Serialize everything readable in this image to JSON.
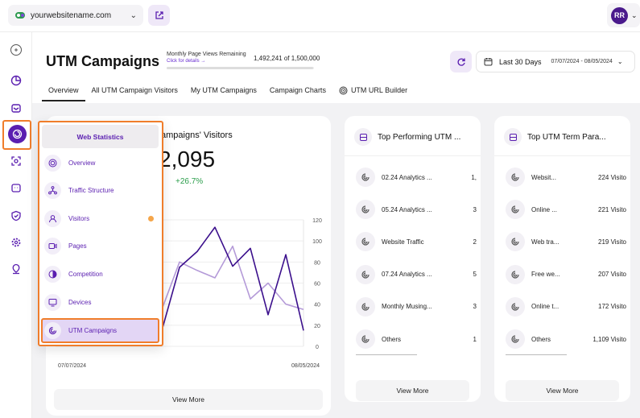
{
  "topbar": {
    "site": "yourwebsitename.com",
    "user_initials": "RR"
  },
  "header": {
    "title": "UTM Campaigns",
    "pageviews_label": "Monthly Page Views Remaining",
    "pageviews_link": "Click for details →",
    "pageviews_value": "1,492,241 of 1,500,000",
    "pageviews_fraction": 0.995,
    "date_range_label": "Last 30 Days",
    "date_range": "07/07/2024 - 08/05/2024"
  },
  "tabs": [
    {
      "label": "Overview"
    },
    {
      "label": "All UTM Campaign Visitors"
    },
    {
      "label": "My UTM Campaigns"
    },
    {
      "label": "Campaign Charts"
    },
    {
      "label": "UTM URL Builder"
    }
  ],
  "visitors_card": {
    "title": "ampaigns' Visitors",
    "value": "2,095",
    "trend": "+26.7%",
    "view_more": "View More"
  },
  "chart_data": {
    "type": "line",
    "x_start_label": "07/07/2024",
    "x_end_label": "08/05/2024",
    "yticks": [
      "120",
      "100",
      "80",
      "60",
      "40",
      "20",
      "0"
    ],
    "ylim": [
      0,
      120
    ],
    "x": [
      0,
      1,
      2,
      3,
      4,
      5,
      6,
      7,
      8,
      9,
      10,
      11,
      12,
      13,
      14
    ],
    "series": [
      {
        "values": [
          80,
          70,
          18,
          85,
          52,
          101,
          15,
          75,
          90,
          113,
          76,
          93,
          30,
          87,
          15
        ],
        "color": "#3b0f8c"
      },
      {
        "values": [
          45,
          55,
          60,
          85,
          55,
          65,
          35,
          80,
          72,
          65,
          95,
          45,
          60,
          40,
          35
        ],
        "color": "#b49ad8"
      }
    ]
  },
  "top_campaigns": {
    "title": "Top Performing UTM ...",
    "items": [
      {
        "label": "02.24 Analytics ...",
        "value": "1,"
      },
      {
        "label": "05.24 Analytics ...",
        "value": "3"
      },
      {
        "label": "Website Traffic",
        "value": "2"
      },
      {
        "label": "07.24 Analytics ...",
        "value": "5"
      },
      {
        "label": "Monthly Musing...",
        "value": "3"
      },
      {
        "label": "Others",
        "value": "1"
      }
    ],
    "view_more": "View More"
  },
  "top_terms": {
    "title": "Top UTM Term Para...",
    "items": [
      {
        "label": "Websit...",
        "value": "224 Visito"
      },
      {
        "label": "Online ...",
        "value": "221 Visito"
      },
      {
        "label": "Web tra...",
        "value": "219 Visito"
      },
      {
        "label": "Free we...",
        "value": "207 Visito"
      },
      {
        "label": "Online t...",
        "value": "172 Visito"
      },
      {
        "label": "Others",
        "value": "1,109 Visito"
      }
    ],
    "view_more": "View More"
  },
  "menu": {
    "header": "Web Statistics",
    "items": [
      {
        "label": "Overview",
        "icon": "target-icon"
      },
      {
        "label": "Traffic Structure",
        "icon": "network-icon"
      },
      {
        "label": "Visitors",
        "icon": "user-icon"
      },
      {
        "label": "Pages",
        "icon": "video-icon"
      },
      {
        "label": "Competition",
        "icon": "half-circle-icon"
      },
      {
        "label": "Devices",
        "icon": "monitor-icon"
      },
      {
        "label": "UTM Campaigns",
        "icon": "utm-icon"
      }
    ]
  },
  "colors": {
    "accent": "#5a1eb0",
    "highlight": "#f07d2b",
    "trend_up": "#2a9d4a",
    "notification": "#f5a64a"
  }
}
